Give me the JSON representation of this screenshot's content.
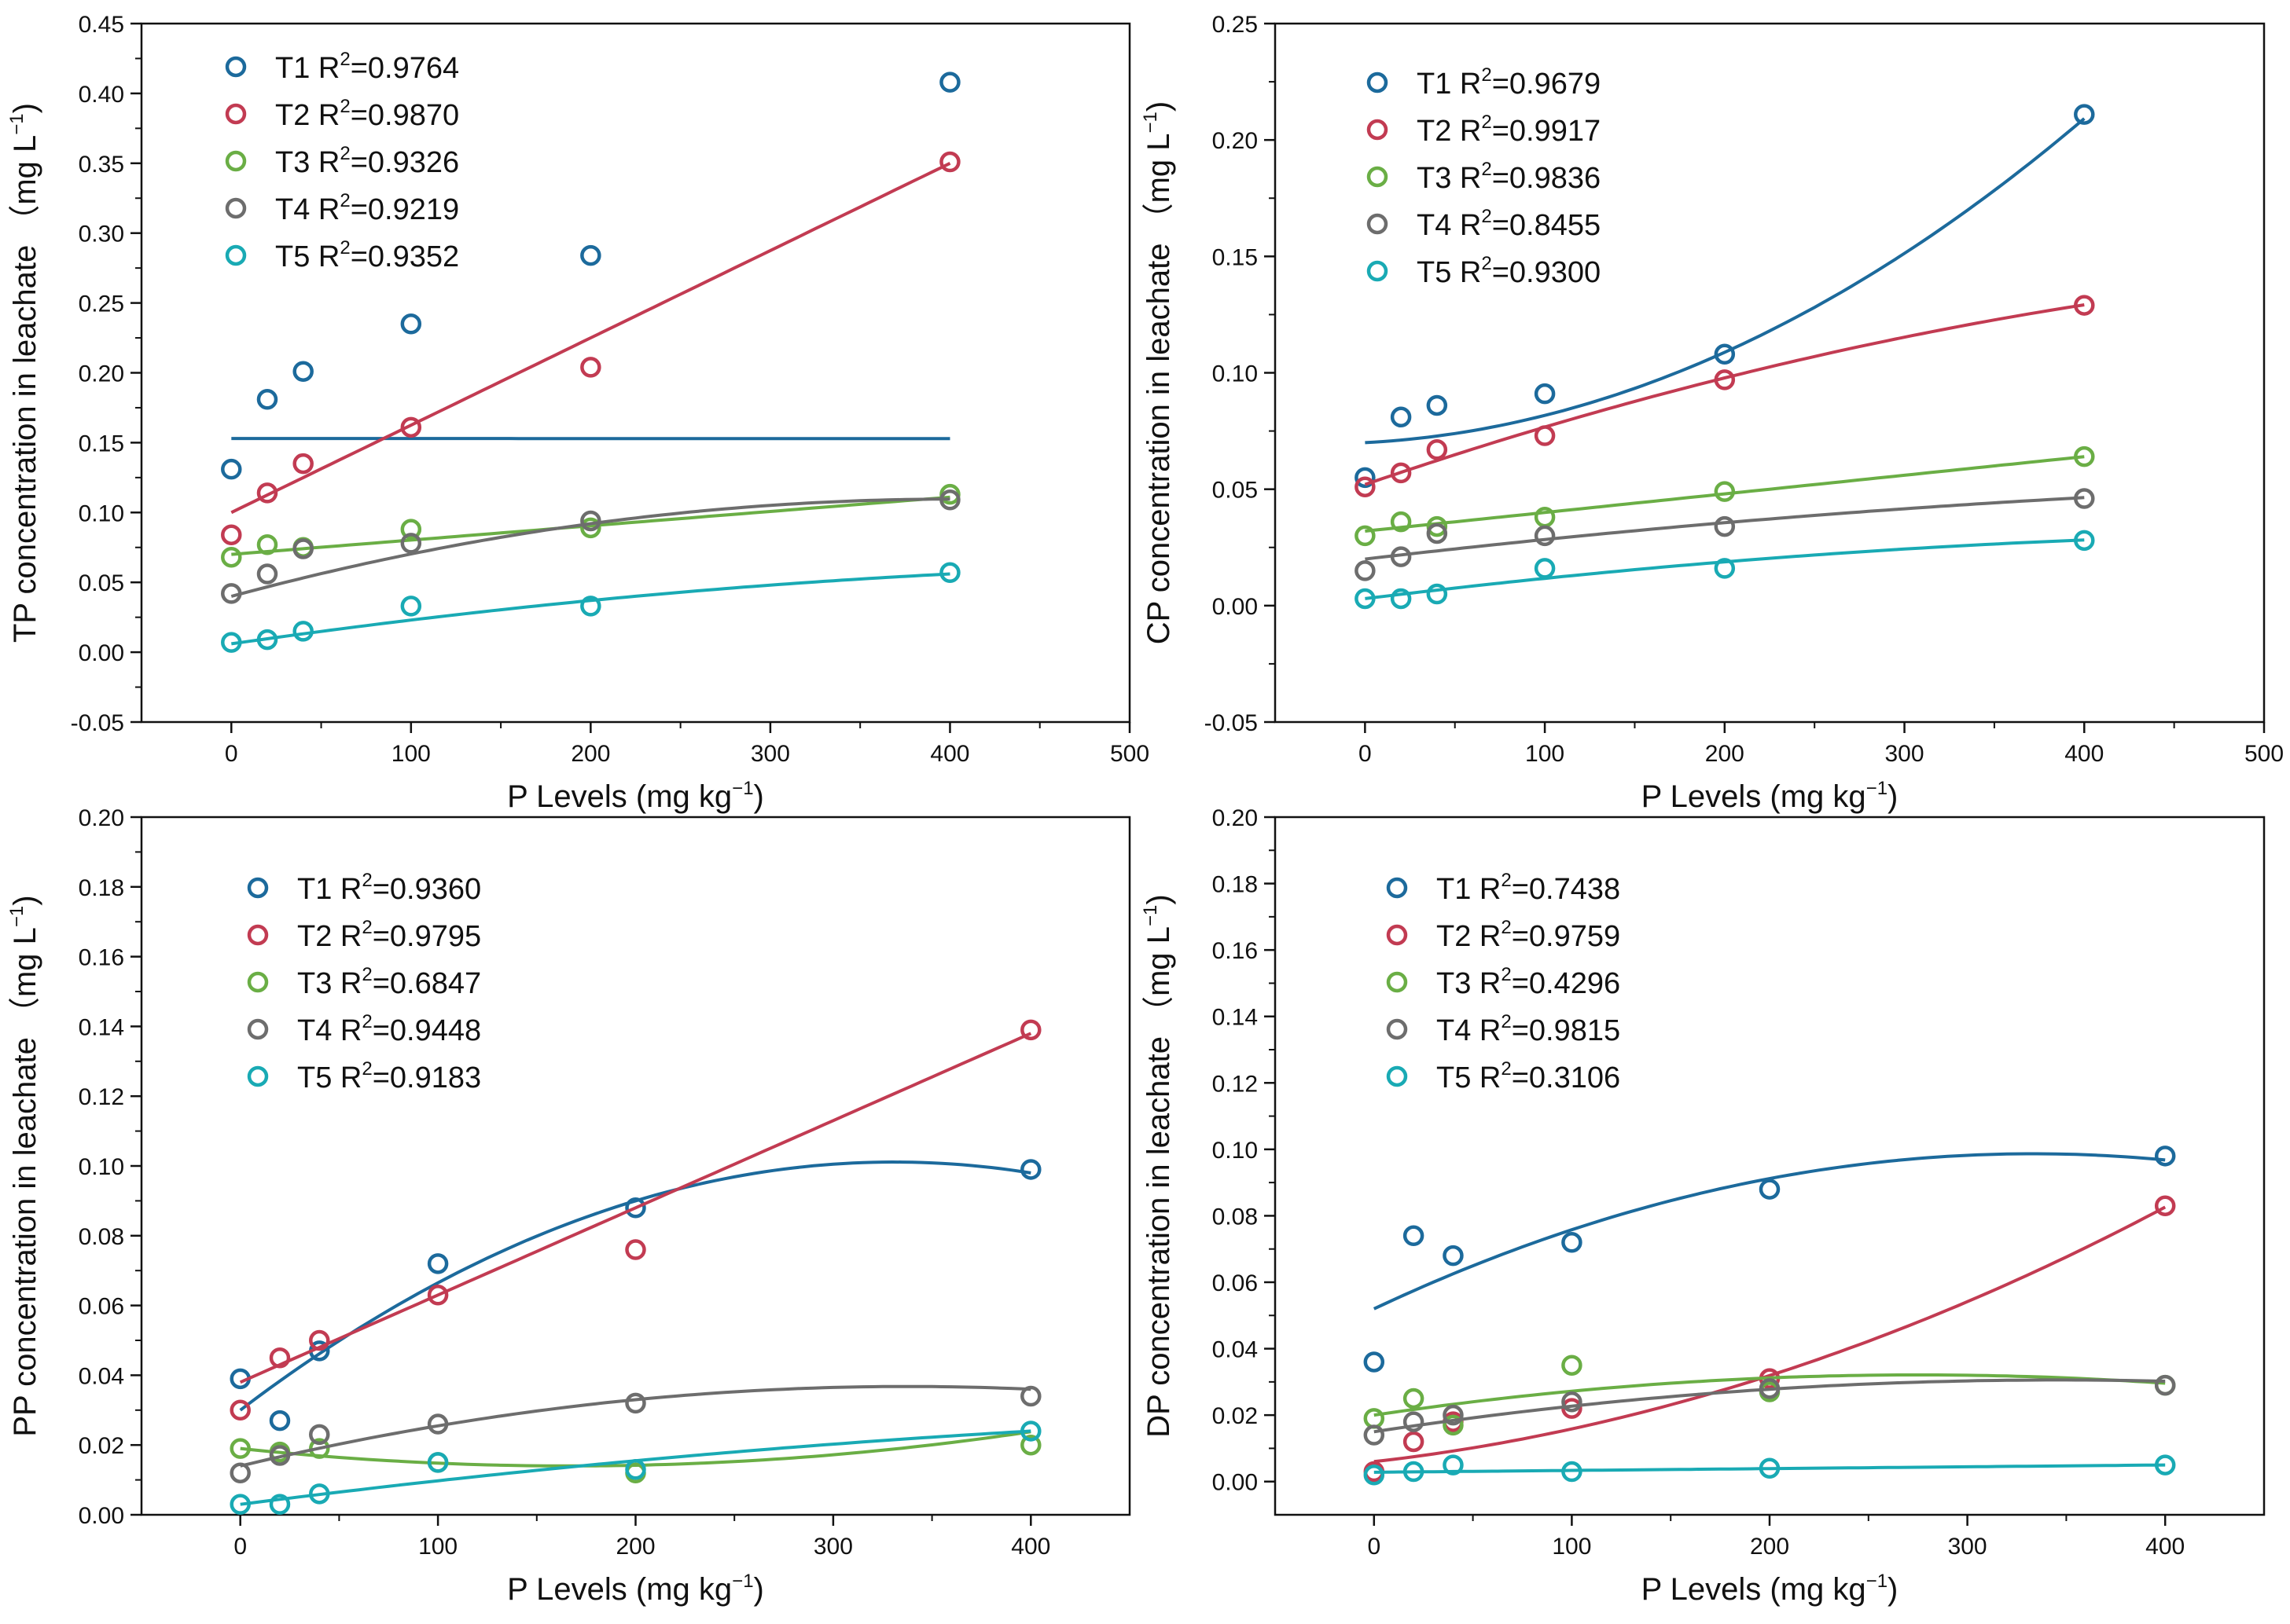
{
  "chart_data": [
    {
      "type": "scatter",
      "id": "tp",
      "xlabel": "P Levels (mg kg",
      "xlabel_sup": "−1",
      "xlabel_end": ")",
      "ylabel": "TP concentration in leachate （mg L",
      "ylabel_sup": "−1",
      "ylabel_end": ")",
      "xlim": [
        -50,
        500
      ],
      "ylim": [
        -0.05,
        0.45
      ],
      "xticks": [
        0,
        100,
        200,
        300,
        400,
        500
      ],
      "yticks": [
        -0.05,
        0.0,
        0.05,
        0.1,
        0.15,
        0.2,
        0.25,
        0.3,
        0.35,
        0.4,
        0.45
      ],
      "ydecimals": 2,
      "legend_position": "top-left",
      "x": [
        0,
        20,
        40,
        100,
        200,
        400
      ],
      "series": [
        {
          "name": "T1",
          "r2": "R²=0.9764",
          "r2_base": "R",
          "r2_sup": "2",
          "r2_value": "=0.9764",
          "color": "#1c6a9c",
          "values": [
            0.131,
            0.181,
            0.201,
            0.235,
            0.284,
            0.408
          ],
          "fit": [
            0.153,
            -3e-07
          ]
        },
        {
          "name": "T2",
          "r2": "R²=0.9870",
          "r2_base": "R",
          "r2_sup": "2",
          "r2_value": "=0.9870",
          "color": "#c23b52",
          "values": [
            0.084,
            0.114,
            0.135,
            0.161,
            0.204,
            0.351
          ],
          "fit": [
            0.1,
            0.000625
          ]
        },
        {
          "name": "T3",
          "r2": "R²=0.9326",
          "r2_base": "R",
          "r2_sup": "2",
          "r2_value": "=0.9326",
          "color": "#6aae45",
          "values": [
            0.068,
            0.077,
            0.075,
            0.088,
            0.089,
            0.113
          ],
          "fit": [
            0.07,
            0.0001025
          ]
        },
        {
          "name": "T4",
          "r2": "R²=0.9219",
          "r2_base": "R",
          "r2_sup": "2",
          "r2_value": "=0.9219",
          "color": "#6d6d6d",
          "values": [
            0.042,
            0.056,
            0.074,
            0.078,
            0.094,
            0.109
          ],
          "fit": [
            0.04,
            0.000346,
            -4.3e-07
          ]
        },
        {
          "name": "T5",
          "r2": "R²=0.9352",
          "r2_base": "R",
          "r2_sup": "2",
          "r2_value": "=0.9352",
          "color": "#19aab4",
          "values": [
            0.007,
            0.009,
            0.015,
            0.033,
            0.033,
            0.057
          ],
          "fit": [
            0.006,
            0.000185,
            -1.5e-07
          ]
        }
      ]
    },
    {
      "type": "scatter",
      "id": "cp",
      "xlabel": "P Levels (mg kg",
      "xlabel_sup": "−1",
      "xlabel_end": ")",
      "ylabel": "CP concentration in leachate （mg L",
      "ylabel_sup": "−1",
      "ylabel_end": ")",
      "xlim": [
        -50,
        500
      ],
      "ylim": [
        -0.05,
        0.25
      ],
      "xticks": [
        0,
        100,
        200,
        300,
        400,
        500
      ],
      "yticks": [
        -0.05,
        0.0,
        0.05,
        0.1,
        0.15,
        0.2,
        0.25
      ],
      "ydecimals": 2,
      "legend_position": "top-left",
      "x": [
        0,
        20,
        40,
        100,
        200,
        400
      ],
      "series": [
        {
          "name": "T1",
          "r2": "R²=0.9679",
          "r2_base": "R",
          "r2_sup": "2",
          "r2_value": "=0.9679",
          "color": "#1c6a9c",
          "values": [
            0.055,
            0.081,
            0.086,
            0.091,
            0.108,
            0.211
          ],
          "fit": [
            0.07,
            4e-05,
            7.7e-07
          ]
        },
        {
          "name": "T2",
          "r2": "R²=0.9917",
          "r2_base": "R",
          "r2_sup": "2",
          "r2_value": "=0.9917",
          "color": "#c23b52",
          "values": [
            0.051,
            0.057,
            0.067,
            0.073,
            0.097,
            0.129
          ],
          "fit": [
            0.052,
            0.000265,
            -1.8e-07
          ]
        },
        {
          "name": "T3",
          "r2": "R²=0.9836",
          "r2_base": "R",
          "r2_sup": "2",
          "r2_value": "=0.9836",
          "color": "#6aae45",
          "values": [
            0.03,
            0.036,
            0.034,
            0.038,
            0.049,
            0.064
          ],
          "fit": [
            0.032,
            8e-05
          ]
        },
        {
          "name": "T4",
          "r2": "R²=0.8455",
          "r2_base": "R",
          "r2_sup": "2",
          "r2_value": "=0.8455",
          "color": "#6d6d6d",
          "values": [
            0.015,
            0.021,
            0.031,
            0.03,
            0.034,
            0.046
          ],
          "fit": [
            0.02,
            9e-05,
            -6e-08
          ]
        },
        {
          "name": "T5",
          "r2": "R²=0.9300",
          "r2_base": "R",
          "r2_sup": "2",
          "r2_value": "=0.9300",
          "color": "#19aab4",
          "values": [
            0.003,
            0.003,
            0.005,
            0.016,
            0.016,
            0.028
          ],
          "fit": [
            0.003,
            9.5e-05,
            -8e-08
          ]
        }
      ]
    },
    {
      "type": "scatter",
      "id": "pp",
      "xlabel": "P Levels (mg kg",
      "xlabel_sup": "−1",
      "xlabel_end": ")",
      "ylabel": "PP concentration in leachate （mg L",
      "ylabel_sup": "−1",
      "ylabel_end": ")",
      "xlim": [
        -50,
        450
      ],
      "ylim": [
        0.0,
        0.2
      ],
      "xticks": [
        0,
        100,
        200,
        300,
        400
      ],
      "yticks": [
        0.0,
        0.02,
        0.04,
        0.06,
        0.08,
        0.1,
        0.12,
        0.14,
        0.16,
        0.18,
        0.2
      ],
      "ydecimals": 2,
      "legend_position": "top-left",
      "x": [
        0,
        20,
        40,
        100,
        200,
        400
      ],
      "series": [
        {
          "name": "T1",
          "r2": "R²=0.9360",
          "r2_base": "R",
          "r2_sup": "2",
          "r2_value": "=0.9360",
          "color": "#1c6a9c",
          "values": [
            0.039,
            0.027,
            0.047,
            0.072,
            0.088,
            0.099
          ],
          "fit": [
            0.03,
            0.00043,
            -6.5e-07
          ]
        },
        {
          "name": "T2",
          "r2": "R²=0.9795",
          "r2_base": "R",
          "r2_sup": "2",
          "r2_value": "=0.9795",
          "color": "#c23b52",
          "values": [
            0.03,
            0.045,
            0.05,
            0.063,
            0.076,
            0.139
          ],
          "fit": [
            0.038,
            0.00025
          ]
        },
        {
          "name": "T3",
          "r2": "R²=0.6847",
          "r2_base": "R",
          "r2_sup": "2",
          "r2_value": "=0.6847",
          "color": "#6aae45",
          "values": [
            0.019,
            0.018,
            0.019,
            0.015,
            0.012,
            0.02
          ],
          "fit": [
            0.019,
            -6e-05,
            1.8e-07
          ]
        },
        {
          "name": "T4",
          "r2": "R²=0.9448",
          "r2_base": "R",
          "r2_sup": "2",
          "r2_value": "=0.9448",
          "color": "#6d6d6d",
          "values": [
            0.012,
            0.017,
            0.023,
            0.026,
            0.032,
            0.034
          ],
          "fit": [
            0.014,
            0.000135,
            -2e-07
          ]
        },
        {
          "name": "T5",
          "r2": "R²=0.9183",
          "r2_base": "R",
          "r2_sup": "2",
          "r2_value": "=0.9183",
          "color": "#19aab4",
          "values": [
            0.003,
            0.003,
            0.006,
            0.015,
            0.013,
            0.024
          ],
          "fit": [
            0.003,
            7.25e-05,
            -5e-08
          ]
        }
      ]
    },
    {
      "type": "scatter",
      "id": "dp",
      "xlabel": "P Levels (mg kg",
      "xlabel_sup": "−1",
      "xlabel_end": ")",
      "ylabel": "DP concentration in leachate （mg L",
      "ylabel_sup": "−1",
      "ylabel_end": ")",
      "xlim": [
        -50,
        450
      ],
      "ylim": [
        -0.01,
        0.2
      ],
      "xticks": [
        0,
        100,
        200,
        300,
        400
      ],
      "yticks": [
        0.0,
        0.02,
        0.04,
        0.06,
        0.08,
        0.1,
        0.12,
        0.14,
        0.16,
        0.18,
        0.2
      ],
      "ydecimals": 2,
      "legend_position": "top-left",
      "x": [
        0,
        20,
        40,
        100,
        200,
        400
      ],
      "series": [
        {
          "name": "T1",
          "r2": "R²=0.7438",
          "r2_base": "R",
          "r2_sup": "2",
          "r2_value": "=0.7438",
          "color": "#1c6a9c",
          "values": [
            0.036,
            0.074,
            0.068,
            0.072,
            0.088,
            0.098
          ],
          "fit": [
            0.052,
            0.00028,
            -4.2e-07
          ]
        },
        {
          "name": "T2",
          "r2": "R²=0.9759",
          "r2_base": "R",
          "r2_sup": "2",
          "r2_value": "=0.9759",
          "color": "#c23b52",
          "values": [
            0.003,
            0.012,
            0.018,
            0.022,
            0.031,
            0.083
          ],
          "fit": [
            0.006,
            6.75e-05,
            3.1e-07
          ]
        },
        {
          "name": "T3",
          "r2": "R²=0.4296",
          "r2_base": "R",
          "r2_sup": "2",
          "r2_value": "=0.4296",
          "color": "#6aae45",
          "values": [
            0.019,
            0.025,
            0.017,
            0.035,
            0.027,
            0.029
          ],
          "fit": [
            0.02,
            8.8e-05,
            -1.6e-07
          ]
        },
        {
          "name": "T4",
          "r2": "R²=0.9815",
          "r2_base": "R",
          "r2_sup": "2",
          "r2_value": "=0.9815",
          "color": "#6d6d6d",
          "values": [
            0.014,
            0.018,
            0.02,
            0.024,
            0.028,
            0.029
          ],
          "fit": [
            0.015,
            9e-05,
            -1.3e-07
          ]
        },
        {
          "name": "T5",
          "r2": "R²=0.3106",
          "r2_base": "R",
          "r2_sup": "2",
          "r2_value": "=0.3106",
          "color": "#19aab4",
          "values": [
            0.002,
            0.003,
            0.005,
            0.003,
            0.004,
            0.005
          ],
          "fit": [
            0.0028,
            5.5e-06
          ]
        }
      ]
    }
  ]
}
